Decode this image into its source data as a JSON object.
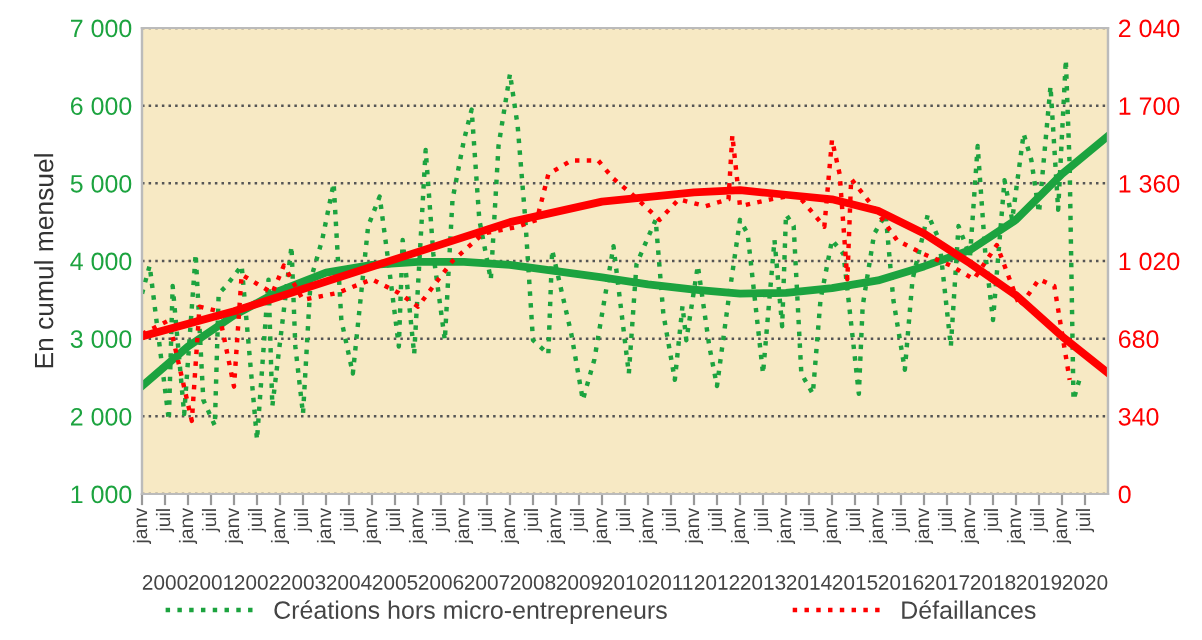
{
  "chart_data": {
    "type": "line",
    "ylabel": "En cumul mensuel",
    "grid": "y",
    "legend": "bottom",
    "line_style": "dotted",
    "xlim": [
      "2000-01",
      "2021-01"
    ],
    "xticks": [
      {
        "value": "2000-07",
        "label": "2000"
      },
      {
        "value": "2001-07",
        "label": "2001"
      },
      {
        "value": "2002-07",
        "label": "2002"
      },
      {
        "value": "2003-07",
        "label": "2003"
      },
      {
        "value": "2004-07",
        "label": "2004"
      },
      {
        "value": "2005-07",
        "label": "2005"
      },
      {
        "value": "2006-07",
        "label": "2006"
      },
      {
        "value": "2007-07",
        "label": "2007"
      },
      {
        "value": "2008-07",
        "label": "2008"
      },
      {
        "value": "2009-07",
        "label": "2009"
      },
      {
        "value": "2010-07",
        "label": "2010"
      },
      {
        "value": "2011-07",
        "label": "2011"
      },
      {
        "value": "2012-07",
        "label": "2012"
      },
      {
        "value": "2013-07",
        "label": "2013"
      },
      {
        "value": "2014-07",
        "label": "2014"
      },
      {
        "value": "2015-07",
        "label": "2015"
      },
      {
        "value": "2016-07",
        "label": "2016"
      },
      {
        "value": "2017-07",
        "label": "2017"
      },
      {
        "value": "2018-07",
        "label": "2018"
      },
      {
        "value": "2019-07",
        "label": "2019"
      },
      {
        "value": "2020-07",
        "label": "2020"
      }
    ],
    "x2lim": [
      "2000-01",
      "2021-01"
    ],
    "x2ticks": [
      {
        "value": "2000-01",
        "label": "janv"
      },
      {
        "value": "2000-07",
        "label": "juil"
      },
      {
        "value": "2001-01",
        "label": "janv"
      },
      {
        "value": "2001-07",
        "label": "juil"
      },
      {
        "value": "2002-01",
        "label": "janv"
      },
      {
        "value": "2002-07",
        "label": "juil"
      },
      {
        "value": "2003-01",
        "label": "janv"
      },
      {
        "value": "2003-07",
        "label": "juil"
      },
      {
        "value": "2004-01",
        "label": "janv"
      },
      {
        "value": "2004-07",
        "label": "juil"
      },
      {
        "value": "2005-01",
        "label": "janv"
      },
      {
        "value": "2005-07",
        "label": "juil"
      },
      {
        "value": "2006-01",
        "label": "janv"
      },
      {
        "value": "2006-07",
        "label": "juil"
      },
      {
        "value": "2007-01",
        "label": "janv"
      },
      {
        "value": "2007-07",
        "label": "juil"
      },
      {
        "value": "2008-01",
        "label": "janv"
      },
      {
        "value": "2008-07",
        "label": "juil"
      },
      {
        "value": "2009-01",
        "label": "janv"
      },
      {
        "value": "2009-07",
        "label": "juil"
      },
      {
        "value": "2010-01",
        "label": "janv"
      },
      {
        "value": "2010-07",
        "label": "juil"
      },
      {
        "value": "2011-01",
        "label": "janv"
      },
      {
        "value": "2011-07",
        "label": "juil"
      },
      {
        "value": "2012-01",
        "label": "janv"
      },
      {
        "value": "2012-07",
        "label": "juil"
      },
      {
        "value": "2013-01",
        "label": "janv"
      },
      {
        "value": "2013-07",
        "label": "juil"
      },
      {
        "value": "2014-01",
        "label": "janv"
      },
      {
        "value": "2014-07",
        "label": "juil"
      },
      {
        "value": "2015-01",
        "label": "janv"
      },
      {
        "value": "2015-07",
        "label": "juil"
      },
      {
        "value": "2016-01",
        "label": "janv"
      },
      {
        "value": "2016-07",
        "label": "juil"
      },
      {
        "value": "2017-01",
        "label": "janv"
      },
      {
        "value": "2017-07",
        "label": "juil"
      },
      {
        "value": "2018-01",
        "label": "janv"
      },
      {
        "value": "2018-07",
        "label": "juil"
      },
      {
        "value": "2019-01",
        "label": "janv"
      },
      {
        "value": "2019-07",
        "label": "juil"
      },
      {
        "value": "2020-01",
        "label": "janv"
      },
      {
        "value": "2020-07",
        "label": "juil"
      }
    ],
    "ylim": [
      1000,
      7000
    ],
    "yticks": [
      {
        "value": 1000,
        "label": "1 000"
      },
      {
        "value": 2000,
        "label": "2 000"
      },
      {
        "value": 3000,
        "label": "3 000"
      },
      {
        "value": 4000,
        "label": "4 000"
      },
      {
        "value": 5000,
        "label": "5 000"
      },
      {
        "value": 6000,
        "label": "6 000"
      },
      {
        "value": 7000,
        "label": "7 000"
      }
    ],
    "y2lim": [
      0,
      2040
    ],
    "y2ticks": [
      0,
      340,
      680,
      {
        "value": 1020,
        "label": "1 020"
      },
      {
        "value": 1360,
        "label": "1 360"
      },
      {
        "value": 1700,
        "label": "1 700"
      },
      {
        "value": 2040,
        "label": "2 040"
      }
    ],
    "series": [
      {
        "name": "Créations hors micro-entrepreneurs",
        "color": "#1ca33f",
        "x": [
          "2000-01",
          "2000-03",
          "2000-08",
          "2000-09",
          "2000-12",
          "2001-03",
          "2001-05",
          "2001-08",
          "2001-09",
          "2001-11",
          "2002-03",
          "2002-07",
          "2002-10",
          "2002-11",
          "2003-04",
          "2003-05",
          "2003-07",
          "2003-09",
          "2003-12",
          "2004-03",
          "2004-05",
          "2004-08",
          "2004-12",
          "2005-03",
          "2005-05",
          "2005-08",
          "2005-09",
          "2005-12",
          "2006-03",
          "2006-05",
          "2006-08",
          "2006-10",
          "2007-01",
          "2007-03",
          "2007-05",
          "2007-08",
          "2007-10",
          "2008-01",
          "2008-03",
          "2008-05",
          "2008-07",
          "2008-11",
          "2008-12",
          "2009-05",
          "2009-08",
          "2009-11",
          "2010-04",
          "2010-08",
          "2010-10",
          "2011-03",
          "2011-05",
          "2011-08",
          "2011-10",
          "2011-11",
          "2012-02",
          "2012-05",
          "2012-07",
          "2012-10",
          "2013-01",
          "2013-03",
          "2013-07",
          "2013-10",
          "2013-12",
          "2014-01",
          "2014-03",
          "2014-05",
          "2014-08",
          "2014-10",
          "2015-01",
          "2015-04",
          "2015-08",
          "2015-09",
          "2015-12",
          "2016-03",
          "2016-05",
          "2016-08",
          "2016-10",
          "2017-02",
          "2017-05",
          "2017-08",
          "2017-10",
          "2018-01",
          "2018-03",
          "2018-05",
          "2018-07",
          "2018-10",
          "2018-12",
          "2019-03",
          "2019-05",
          "2019-07",
          "2019-10",
          "2019-12",
          "2020-02",
          "2020-03",
          "2020-04",
          "2020-06"
        ],
        "values": [
          3580,
          3940,
          1950,
          3680,
          2030,
          4090,
          2210,
          1880,
          3580,
          3680,
          3940,
          1700,
          3760,
          2130,
          4190,
          2900,
          2030,
          3760,
          4270,
          5000,
          3240,
          2550,
          4450,
          4830,
          4090,
          2900,
          4270,
          2800,
          5430,
          4090,
          2980,
          4790,
          5560,
          5950,
          4530,
          3760,
          5480,
          6410,
          5740,
          4530,
          2980,
          2800,
          4140,
          3060,
          2210,
          2730,
          4190,
          2550,
          3960,
          4530,
          3320,
          2470,
          3420,
          2980,
          3940,
          2900,
          2390,
          3500,
          4530,
          4350,
          2550,
          4270,
          3160,
          4600,
          4450,
          2550,
          2290,
          3500,
          4270,
          4090,
          2290,
          3420,
          4350,
          4600,
          3500,
          2600,
          3760,
          4600,
          4270,
          2900,
          4450,
          4060,
          5480,
          4090,
          3240,
          5040,
          4530,
          5640,
          5300,
          4620,
          6250,
          4660,
          6590,
          5220,
          2210,
          2550
        ]
      },
      {
        "name": "Défaillances",
        "color": "#ff0000",
        "axis": "y2",
        "x": [
          "2000-01",
          "2000-08",
          "2001-02",
          "2001-04",
          "2001-09",
          "2002-01",
          "2002-03",
          "2002-11",
          "2003-02",
          "2003-07",
          "2004-04",
          "2005-01",
          "2005-08",
          "2006-01",
          "2006-05",
          "2006-10",
          "2007-06",
          "2008-03",
          "2008-08",
          "2008-11",
          "2009-05",
          "2009-12",
          "2010-04",
          "2010-09",
          "2011-04",
          "2011-09",
          "2012-04",
          "2012-10",
          "2012-11",
          "2013-01",
          "2013-09",
          "2014-04",
          "2014-11",
          "2015-01",
          "2015-03",
          "2015-05",
          "2015-06",
          "2016-01",
          "2016-06",
          "2017-01",
          "2017-08",
          "2018-02",
          "2018-08",
          "2019-02",
          "2019-07",
          "2019-11",
          "2020-03"
        ],
        "values": [
          700,
          760,
          320,
          820,
          800,
          470,
          960,
          880,
          1000,
          850,
          880,
          940,
          880,
          820,
          910,
          1020,
          1140,
          1170,
          1200,
          1400,
          1460,
          1460,
          1380,
          1310,
          1200,
          1290,
          1260,
          1290,
          1570,
          1260,
          1290,
          1310,
          1170,
          1550,
          1400,
          940,
          1380,
          1230,
          1110,
          1050,
          1000,
          940,
          1090,
          820,
          940,
          910,
          500
        ]
      },
      {
        "color": "#1ca33f",
        "line_style": "solid",
        "x": [
          "2000-01",
          "2001-01",
          "2002-01",
          "2003-01",
          "2004-01",
          "2005-01",
          "2006-01",
          "2007-01",
          "2008-01",
          "2009-01",
          "2010-01",
          "2011-01",
          "2012-01",
          "2013-01",
          "2014-01",
          "2015-01",
          "2016-01",
          "2017-01",
          "2018-01",
          "2019-01",
          "2020-01",
          "2021-01"
        ],
        "values": [
          2390,
          2900,
          3300,
          3620,
          3850,
          3950,
          3990,
          3990,
          3950,
          3870,
          3790,
          3700,
          3630,
          3580,
          3590,
          3650,
          3750,
          3930,
          4140,
          4530,
          5120,
          5610
        ]
      },
      {
        "color": "#ff0000",
        "line_style": "solid",
        "axis": "y2",
        "x": [
          "2000-01",
          "2002-01",
          "2004-01",
          "2006-01",
          "2008-01",
          "2010-01",
          "2012-01",
          "2013-01",
          "2014-01",
          "2015-01",
          "2016-01",
          "2017-01",
          "2018-01",
          "2019-01",
          "2020-01",
          "2021-01"
        ],
        "values": [
          690,
          800,
          930,
          1060,
          1190,
          1280,
          1320,
          1330,
          1310,
          1290,
          1240,
          1140,
          1010,
          870,
          690,
          530
        ]
      }
    ]
  }
}
